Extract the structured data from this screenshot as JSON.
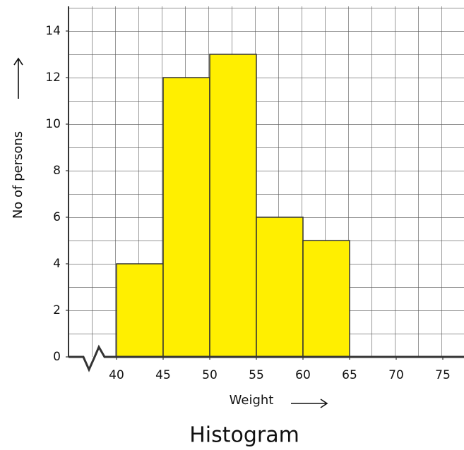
{
  "chart_data": {
    "type": "histogram",
    "title": "Histogram",
    "x_label": "Weight",
    "y_label": "No of persons",
    "bins": [
      40,
      45,
      50,
      55,
      60,
      65
    ],
    "values": [
      4,
      12,
      13,
      6,
      5
    ],
    "color": "#ffef00",
    "xlim": [
      40,
      77.5
    ],
    "xticks": [
      40,
      45,
      50,
      55,
      60,
      65,
      70,
      75
    ],
    "ylim": [
      0,
      15
    ],
    "yticks": [
      0,
      2,
      4,
      6,
      8,
      10,
      12,
      14
    ],
    "grid": true
  }
}
